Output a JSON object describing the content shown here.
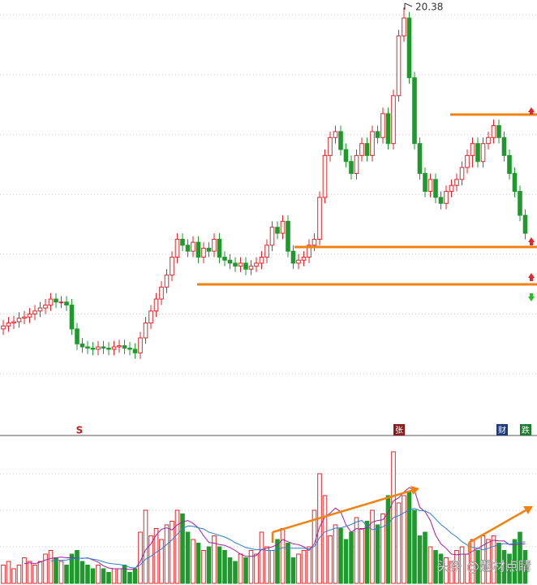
{
  "chart_data": [
    {
      "type": "candlestick",
      "open": [
        15.0,
        15.05,
        15.1,
        15.12,
        15.18,
        15.2,
        15.25,
        15.3,
        15.35,
        15.4,
        15.5,
        15.45,
        15.45,
        15.4,
        15.0,
        14.75,
        14.7,
        14.68,
        14.66,
        14.7,
        14.68,
        14.66,
        14.7,
        14.72,
        14.68,
        14.66,
        14.6,
        14.85,
        15.1,
        15.3,
        15.5,
        15.7,
        15.9,
        16.2,
        16.5,
        16.4,
        16.3,
        16.45,
        16.2,
        16.35,
        16.3,
        16.5,
        16.2,
        16.15,
        16.1,
        16.05,
        16.1,
        16.0,
        16.05,
        16.1,
        16.2,
        16.4,
        16.7,
        16.6,
        16.8,
        16.3,
        16.1,
        16.15,
        16.2,
        16.4,
        16.5,
        17.2,
        17.9,
        18.2,
        18.3,
        18.0,
        17.8,
        17.6,
        17.9,
        18.1,
        17.9,
        18.3,
        18.2,
        18.6,
        18.1,
        18.9,
        19.9,
        20.2,
        19.2,
        18.1,
        17.6,
        17.3,
        17.5,
        17.2,
        17.1,
        17.3,
        17.4,
        17.5,
        17.7,
        17.9,
        18.1,
        17.8,
        18.1,
        18.2,
        18.4,
        18.2,
        17.9,
        17.6,
        17.3,
        16.9
      ],
      "close": [
        15.05,
        15.1,
        15.12,
        15.18,
        15.2,
        15.25,
        15.3,
        15.35,
        15.4,
        15.5,
        15.45,
        15.45,
        15.4,
        15.0,
        14.75,
        14.7,
        14.68,
        14.66,
        14.7,
        14.68,
        14.66,
        14.7,
        14.72,
        14.68,
        14.66,
        14.6,
        14.85,
        15.1,
        15.3,
        15.5,
        15.7,
        15.9,
        16.2,
        16.5,
        16.4,
        16.3,
        16.45,
        16.2,
        16.35,
        16.3,
        16.5,
        16.2,
        16.15,
        16.1,
        16.05,
        16.1,
        16.0,
        16.05,
        16.1,
        16.2,
        16.4,
        16.7,
        16.6,
        16.8,
        16.3,
        16.1,
        16.15,
        16.2,
        16.4,
        16.5,
        17.2,
        17.9,
        18.2,
        18.3,
        18.0,
        17.8,
        17.6,
        17.9,
        18.1,
        17.9,
        18.3,
        18.2,
        18.6,
        18.1,
        18.9,
        19.9,
        20.2,
        19.2,
        18.1,
        17.6,
        17.3,
        17.5,
        17.2,
        17.1,
        17.3,
        17.4,
        17.5,
        17.7,
        17.9,
        18.1,
        17.8,
        18.1,
        18.2,
        18.4,
        18.2,
        17.9,
        17.6,
        17.3,
        16.9,
        16.6
      ],
      "high": [
        15.15,
        15.2,
        15.22,
        15.28,
        15.3,
        15.35,
        15.4,
        15.45,
        15.5,
        15.6,
        15.6,
        15.55,
        15.55,
        15.5,
        15.1,
        14.85,
        14.8,
        14.78,
        14.8,
        14.8,
        14.78,
        14.8,
        14.82,
        14.82,
        14.78,
        14.76,
        14.95,
        15.2,
        15.4,
        15.6,
        15.8,
        16.0,
        16.3,
        16.6,
        16.6,
        16.5,
        16.55,
        16.55,
        16.45,
        16.45,
        16.6,
        16.6,
        16.3,
        16.25,
        16.2,
        16.2,
        16.2,
        16.15,
        16.2,
        16.3,
        16.5,
        16.8,
        16.8,
        16.9,
        16.9,
        16.4,
        16.25,
        16.3,
        16.5,
        16.6,
        17.3,
        18.0,
        18.3,
        18.4,
        18.4,
        18.1,
        17.9,
        18.0,
        18.2,
        18.2,
        18.4,
        18.4,
        18.7,
        18.7,
        19.0,
        20.0,
        20.38,
        20.3,
        19.3,
        18.2,
        17.7,
        17.6,
        17.6,
        17.3,
        17.4,
        17.5,
        17.6,
        17.8,
        18.0,
        18.2,
        18.2,
        18.2,
        18.3,
        18.5,
        18.5,
        18.3,
        18.0,
        17.7,
        17.4,
        17.0
      ],
      "low": [
        14.9,
        14.95,
        15.0,
        15.02,
        15.08,
        15.1,
        15.15,
        15.2,
        15.25,
        15.3,
        15.35,
        15.35,
        15.3,
        14.9,
        14.65,
        14.6,
        14.58,
        14.56,
        14.56,
        14.58,
        14.56,
        14.56,
        14.6,
        14.58,
        14.56,
        14.5,
        14.5,
        14.75,
        15.0,
        15.2,
        15.4,
        15.6,
        15.8,
        16.1,
        16.3,
        16.2,
        16.2,
        16.1,
        16.1,
        16.2,
        16.2,
        16.1,
        16.05,
        16.0,
        15.95,
        15.95,
        15.9,
        15.9,
        15.95,
        16.0,
        16.1,
        16.3,
        16.5,
        16.5,
        16.2,
        16.0,
        16.0,
        16.05,
        16.1,
        16.3,
        16.4,
        17.1,
        17.8,
        18.1,
        17.9,
        17.7,
        17.5,
        17.5,
        17.8,
        17.8,
        17.8,
        18.1,
        18.1,
        18.0,
        18.0,
        18.8,
        19.8,
        19.1,
        18.0,
        17.5,
        17.2,
        17.2,
        17.1,
        17.0,
        17.0,
        17.2,
        17.3,
        17.4,
        17.6,
        17.7,
        17.7,
        17.7,
        18.0,
        18.1,
        18.1,
        17.8,
        17.5,
        17.2,
        16.8,
        16.5
      ],
      "ylim": [
        13.3,
        20.5
      ],
      "yticks": [
        20.25,
        19.25,
        18.25,
        17.25,
        16.25,
        15.25,
        14.25
      ],
      "grid": true,
      "up_color": "#e0262a",
      "down_color": "#1e9a2c",
      "annotations": [
        "S",
        "张",
        "财",
        "跌"
      ]
    },
    {
      "type": "volume",
      "values": [
        0.5,
        0.6,
        0.4,
        0.5,
        0.7,
        0.6,
        0.5,
        0.6,
        0.8,
        0.9,
        0.7,
        0.6,
        0.5,
        0.8,
        0.9,
        0.6,
        0.5,
        0.4,
        0.5,
        0.4,
        0.3,
        0.4,
        0.4,
        0.5,
        0.3,
        0.4,
        1.4,
        2.0,
        1.3,
        1.5,
        1.2,
        1.6,
        1.7,
        2.0,
        1.9,
        1.4,
        1.2,
        1.1,
        0.9,
        1.0,
        1.3,
        1.0,
        0.9,
        0.7,
        0.6,
        0.8,
        0.7,
        0.9,
        0.8,
        1.4,
        1.0,
        0.9,
        1.2,
        1.5,
        1.1,
        0.7,
        0.8,
        0.9,
        1.0,
        2.0,
        3.0,
        2.4,
        1.3,
        1.6,
        1.5,
        1.2,
        1.4,
        1.8,
        1.5,
        1.7,
        2.0,
        1.6,
        1.9,
        2.4,
        3.6,
        2.2,
        2.4,
        2.5,
        2.0,
        1.3,
        1.4,
        1.0,
        0.9,
        0.8,
        0.7,
        0.6,
        0.9,
        1.0,
        0.8,
        1.2,
        0.9,
        1.3,
        1.2,
        1.3,
        1.1,
        0.9,
        0.8,
        1.2,
        1.4,
        0.9
      ],
      "series": [
        {
          "color": "#a020a0",
          "values": [
            null,
            null,
            null,
            null,
            0.54,
            0.56,
            0.54,
            0.58,
            0.64,
            0.68,
            0.7,
            0.72,
            0.7,
            0.7,
            0.7,
            0.68,
            0.7,
            0.64,
            0.58,
            0.48,
            0.42,
            0.4,
            0.4,
            0.4,
            0.38,
            0.4,
            0.6,
            0.92,
            1.08,
            1.32,
            1.48,
            1.52,
            1.46,
            1.6,
            1.68,
            1.72,
            1.64,
            1.52,
            1.3,
            1.12,
            1.1,
            1.06,
            1.04,
            0.98,
            0.9,
            0.8,
            0.74,
            0.74,
            0.76,
            0.92,
            0.96,
            1.0,
            1.06,
            1.2,
            1.14,
            1.08,
            1.06,
            1.0,
            0.9,
            1.08,
            1.54,
            1.82,
            1.92,
            2.06,
            1.96,
            1.6,
            1.4,
            1.5,
            1.48,
            1.52,
            1.68,
            1.72,
            1.74,
            1.92,
            2.26,
            2.34,
            2.5,
            2.62,
            2.54,
            2.08,
            1.96,
            1.72,
            1.32,
            1.08,
            0.96,
            0.8,
            0.78,
            0.8,
            0.8,
            0.88,
            0.96,
            1.04,
            1.12,
            1.18,
            1.16,
            1.16,
            1.06,
            1.06,
            1.08,
            1.08
          ]
        },
        {
          "color": "#2a7fd4",
          "values": [
            null,
            null,
            null,
            null,
            null,
            null,
            null,
            null,
            null,
            0.61,
            0.63,
            0.63,
            0.64,
            0.67,
            0.69,
            0.69,
            0.69,
            0.66,
            0.64,
            0.59,
            0.55,
            0.53,
            0.52,
            0.49,
            0.44,
            0.42,
            0.51,
            0.66,
            0.74,
            0.85,
            0.94,
            1.06,
            1.19,
            1.34,
            1.5,
            1.57,
            1.56,
            1.52,
            1.49,
            1.4,
            1.36,
            1.31,
            1.27,
            1.2,
            1.11,
            1.05,
            0.98,
            0.95,
            0.92,
            0.93,
            0.9,
            0.9,
            0.92,
            0.98,
            0.97,
            0.96,
            0.96,
            0.96,
            0.94,
            1.01,
            1.25,
            1.41,
            1.46,
            1.51,
            1.52,
            1.56,
            1.61,
            1.68,
            1.72,
            1.57,
            1.47,
            1.5,
            1.55,
            1.62,
            1.8,
            1.85,
            1.93,
            2.0,
            2.05,
            1.99,
            1.98,
            1.91,
            1.76,
            1.61,
            1.5,
            1.37,
            1.27,
            1.14,
            1.05,
            0.99,
            0.96,
            0.92,
            0.96,
            1.01,
            1.06,
            1.09,
            1.07,
            1.1,
            1.13,
            1.13
          ]
        }
      ],
      "ylim": [
        0,
        4
      ],
      "yticks": [
        1,
        2,
        3
      ],
      "grid": true
    }
  ],
  "watermark": "头条 @题材点睛"
}
